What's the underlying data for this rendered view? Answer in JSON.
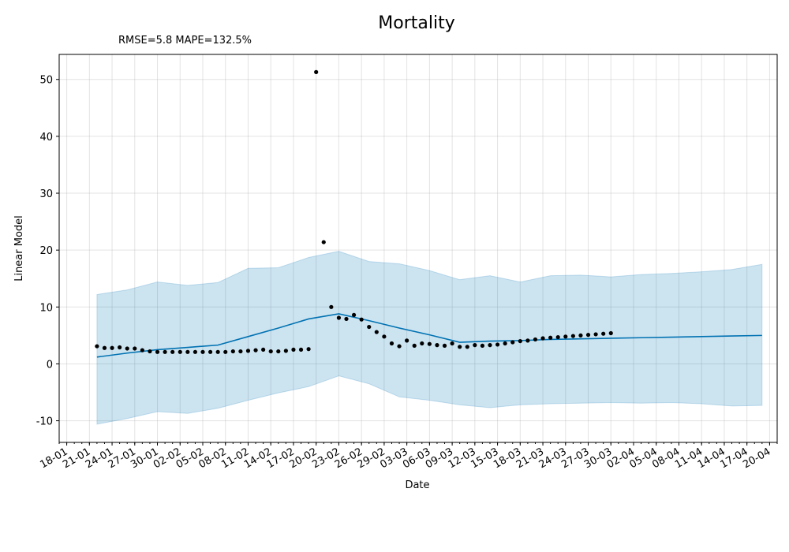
{
  "chart_data": {
    "type": "line",
    "title": "Mortality",
    "subtitle": "RMSE=5.8 MAPE=132.5%",
    "xlabel": "Date",
    "ylabel": "Linear Model",
    "xlim": [
      "2020-01-17",
      "2020-04-21"
    ],
    "ylim": [
      -13.8,
      54.4
    ],
    "y_ticks": [
      -10,
      0,
      10,
      20,
      30,
      40,
      50
    ],
    "x_ticks": [
      "2020-01-18",
      "2020-01-21",
      "2020-01-24",
      "2020-01-27",
      "2020-01-30",
      "2020-02-02",
      "2020-02-05",
      "2020-02-08",
      "2020-02-11",
      "2020-02-14",
      "2020-02-17",
      "2020-02-20",
      "2020-02-23",
      "2020-02-26",
      "2020-02-29",
      "2020-03-03",
      "2020-03-06",
      "2020-03-09",
      "2020-03-12",
      "2020-03-15",
      "2020-03-18",
      "2020-03-21",
      "2020-03-24",
      "2020-03-27",
      "2020-03-30",
      "2020-04-02",
      "2020-04-05",
      "2020-04-08",
      "2020-04-11",
      "2020-04-14",
      "2020-04-17",
      "2020-04-20"
    ],
    "x_tick_labels": [
      "18-01",
      "21-01",
      "24-01",
      "27-01",
      "30-01",
      "02-02",
      "05-02",
      "08-02",
      "11-02",
      "14-02",
      "17-02",
      "20-02",
      "23-02",
      "26-02",
      "29-02",
      "03-03",
      "06-03",
      "09-03",
      "12-03",
      "15-03",
      "18-03",
      "21-03",
      "24-03",
      "27-03",
      "30-03",
      "02-04",
      "05-04",
      "08-04",
      "11-04",
      "14-04",
      "17-04",
      "20-04"
    ],
    "grid": true,
    "colors": {
      "line": "#0072B2",
      "band": "#0072B2",
      "points": "#000000"
    },
    "forecast": {
      "x": [
        "2020-01-22",
        "2020-01-26",
        "2020-01-30",
        "2020-02-03",
        "2020-02-07",
        "2020-02-11",
        "2020-02-15",
        "2020-02-19",
        "2020-02-23",
        "2020-02-27",
        "2020-03-02",
        "2020-03-06",
        "2020-03-10",
        "2020-03-14",
        "2020-03-18",
        "2020-03-22",
        "2020-03-26",
        "2020-03-30",
        "2020-04-03",
        "2020-04-07",
        "2020-04-11",
        "2020-04-15",
        "2020-04-19"
      ],
      "yhat": [
        1.2,
        1.9,
        2.5,
        2.9,
        3.3,
        4.8,
        6.3,
        7.9,
        8.8,
        7.6,
        6.3,
        5.1,
        3.8,
        4.0,
        4.1,
        4.3,
        4.4,
        4.5,
        4.6,
        4.7,
        4.8,
        4.9,
        5.0
      ],
      "upper": [
        12.2,
        13.0,
        14.4,
        13.8,
        14.3,
        16.8,
        16.9,
        18.7,
        19.8,
        18.0,
        17.6,
        16.4,
        14.8,
        15.5,
        14.4,
        15.5,
        15.6,
        15.3,
        15.7,
        15.9,
        16.2,
        16.6,
        17.5
      ],
      "lower": [
        -10.6,
        -9.6,
        -8.4,
        -8.7,
        -7.8,
        -6.4,
        -5.1,
        -4.0,
        -2.1,
        -3.5,
        -5.8,
        -6.4,
        -7.2,
        -7.7,
        -7.2,
        -7.0,
        -6.9,
        -6.8,
        -6.9,
        -6.8,
        -7.0,
        -7.4,
        -7.3
      ]
    },
    "actual": {
      "x": [
        "2020-01-22",
        "2020-01-23",
        "2020-01-24",
        "2020-01-25",
        "2020-01-26",
        "2020-01-27",
        "2020-01-28",
        "2020-01-29",
        "2020-01-30",
        "2020-01-31",
        "2020-02-01",
        "2020-02-02",
        "2020-02-03",
        "2020-02-04",
        "2020-02-05",
        "2020-02-06",
        "2020-02-07",
        "2020-02-08",
        "2020-02-09",
        "2020-02-10",
        "2020-02-11",
        "2020-02-12",
        "2020-02-13",
        "2020-02-14",
        "2020-02-15",
        "2020-02-16",
        "2020-02-17",
        "2020-02-18",
        "2020-02-19",
        "2020-02-20",
        "2020-02-21",
        "2020-02-22",
        "2020-02-23",
        "2020-02-24",
        "2020-02-25",
        "2020-02-26",
        "2020-02-27",
        "2020-02-28",
        "2020-02-29",
        "2020-03-01",
        "2020-03-02",
        "2020-03-03",
        "2020-03-04",
        "2020-03-05",
        "2020-03-06",
        "2020-03-07",
        "2020-03-08",
        "2020-03-09",
        "2020-03-10",
        "2020-03-11",
        "2020-03-12",
        "2020-03-13",
        "2020-03-14",
        "2020-03-15",
        "2020-03-16",
        "2020-03-17",
        "2020-03-18",
        "2020-03-19",
        "2020-03-20",
        "2020-03-21",
        "2020-03-22",
        "2020-03-23",
        "2020-03-24",
        "2020-03-25",
        "2020-03-26",
        "2020-03-27",
        "2020-03-28",
        "2020-03-29",
        "2020-03-30"
      ],
      "y": [
        3.1,
        2.8,
        2.8,
        2.9,
        2.7,
        2.7,
        2.4,
        2.2,
        2.1,
        2.1,
        2.1,
        2.1,
        2.1,
        2.1,
        2.1,
        2.1,
        2.1,
        2.1,
        2.2,
        2.2,
        2.3,
        2.4,
        2.5,
        2.2,
        2.2,
        2.3,
        2.5,
        2.5,
        2.6,
        51.3,
        21.4,
        10.0,
        8.1,
        7.9,
        8.6,
        7.8,
        6.5,
        5.6,
        4.8,
        3.6,
        3.1,
        4.1,
        3.2,
        3.6,
        3.5,
        3.3,
        3.2,
        3.6,
        3.0,
        3.0,
        3.3,
        3.2,
        3.3,
        3.4,
        3.6,
        3.8,
        4.0,
        4.1,
        4.3,
        4.5,
        4.6,
        4.7,
        4.8,
        4.9,
        5.0,
        5.1,
        5.2,
        5.3,
        5.4
      ]
    }
  }
}
